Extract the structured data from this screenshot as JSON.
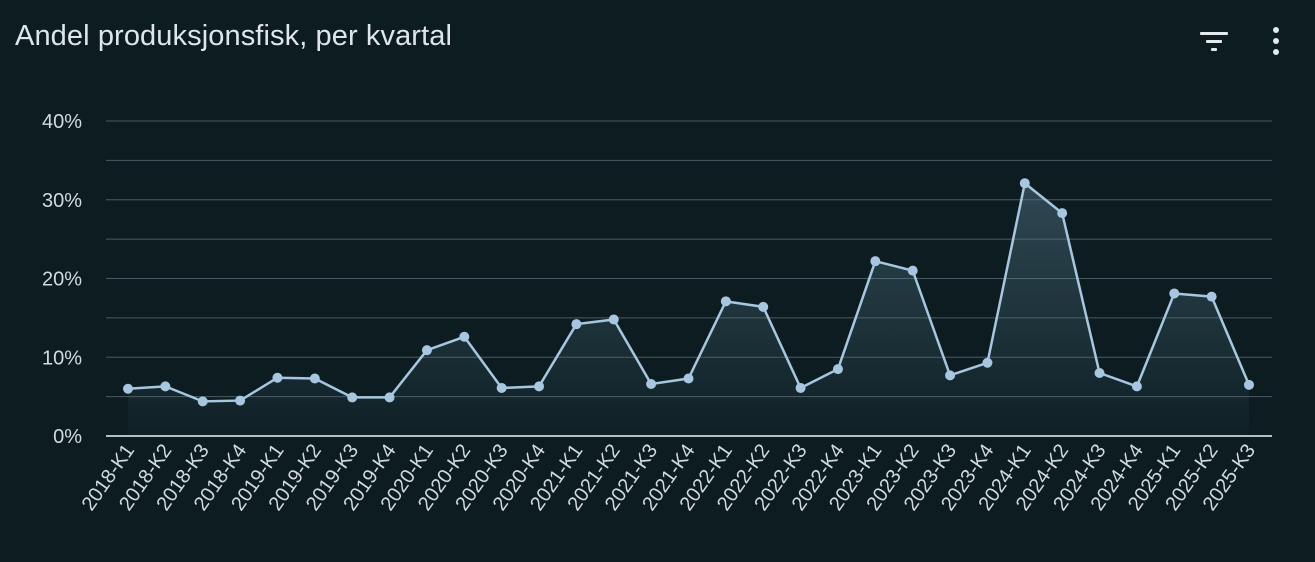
{
  "header": {
    "title": "Andel produksjonsfisk, per kvartal",
    "filter_icon": "filter-icon",
    "more_icon": "more-vertical-icon"
  },
  "chart_data": {
    "type": "line",
    "title": "Andel produksjonsfisk, per kvartal",
    "xlabel": "",
    "ylabel": "",
    "categories": [
      "2018-K1",
      "2018-K2",
      "2018-K3",
      "2018-K4",
      "2019-K1",
      "2019-K2",
      "2019-K3",
      "2019-K4",
      "2020-K1",
      "2020-K2",
      "2020-K3",
      "2020-K4",
      "2021-K1",
      "2021-K2",
      "2021-K3",
      "2021-K4",
      "2022-K1",
      "2022-K2",
      "2022-K3",
      "2022-K4",
      "2023-K1",
      "2023-K2",
      "2023-K3",
      "2023-K4",
      "2024-K1",
      "2024-K2",
      "2024-K3",
      "2024-K4",
      "2025-K1",
      "2025-K2",
      "2025-K3"
    ],
    "series": [
      {
        "values": [
          6.0,
          6.3,
          4.4,
          4.5,
          7.4,
          7.3,
          4.9,
          4.9,
          10.9,
          12.6,
          6.1,
          6.3,
          14.2,
          14.8,
          6.6,
          7.3,
          17.1,
          16.4,
          6.1,
          8.5,
          22.2,
          21.0,
          7.7,
          9.3,
          32.1,
          28.3,
          8.0,
          6.3,
          18.1,
          17.7,
          6.5
        ]
      }
    ],
    "ylim": [
      0,
      40
    ],
    "yticks": [
      0,
      10,
      20,
      30,
      40
    ],
    "ytick_labels": [
      "0%",
      "10%",
      "20%",
      "30%",
      "40%"
    ],
    "grid": true,
    "colors": {
      "line": "#a7c7e0",
      "grid": "#4a5a60",
      "axis": "#f0f3f4",
      "background": "#0c1c21"
    }
  }
}
